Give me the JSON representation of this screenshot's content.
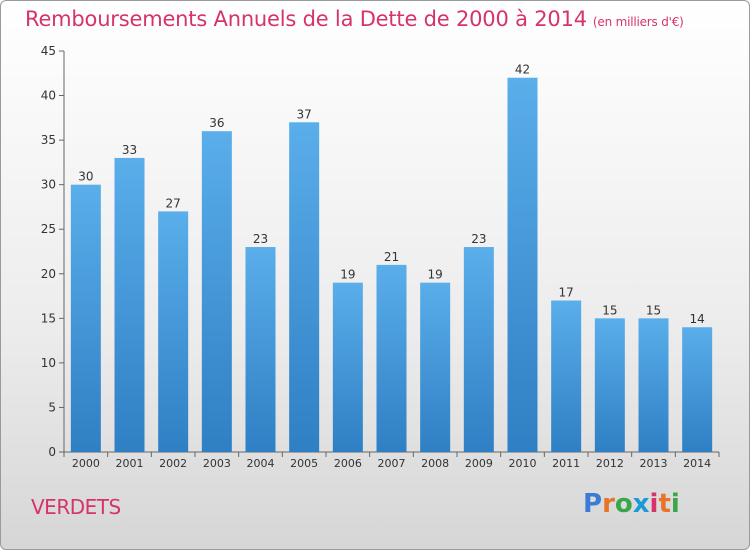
{
  "header": {
    "title": "Remboursements Annuels de la Dette de 2000 à 2014",
    "unit": "(en milliers d'€)"
  },
  "footer": {
    "commune": "VERDETS",
    "logo": {
      "text": "Proxiti",
      "colors": [
        "#3a7bd5",
        "#e8742c",
        "#3aa64a",
        "#1a9ad6",
        "#d6336c",
        "#e8742c",
        "#3aa64a"
      ]
    }
  },
  "chart_data": {
    "type": "bar",
    "title": "Remboursements Annuels de la Dette de 2000 à 2014",
    "subtitle": "(en milliers d'€)",
    "categories": [
      "2000",
      "2001",
      "2002",
      "2003",
      "2004",
      "2005",
      "2006",
      "2007",
      "2008",
      "2009",
      "2010",
      "2011",
      "2012",
      "2013",
      "2014"
    ],
    "values": [
      30,
      33,
      27,
      36,
      23,
      37,
      19,
      21,
      19,
      23,
      42,
      17,
      15,
      15,
      14
    ],
    "ylim": [
      0,
      45
    ],
    "yticks": [
      0,
      5,
      10,
      15,
      20,
      25,
      30,
      35,
      40,
      45
    ],
    "grid": false,
    "legend": "none",
    "bar_color_top": "#5aaeea",
    "bar_color_bottom": "#2f7fc4"
  }
}
